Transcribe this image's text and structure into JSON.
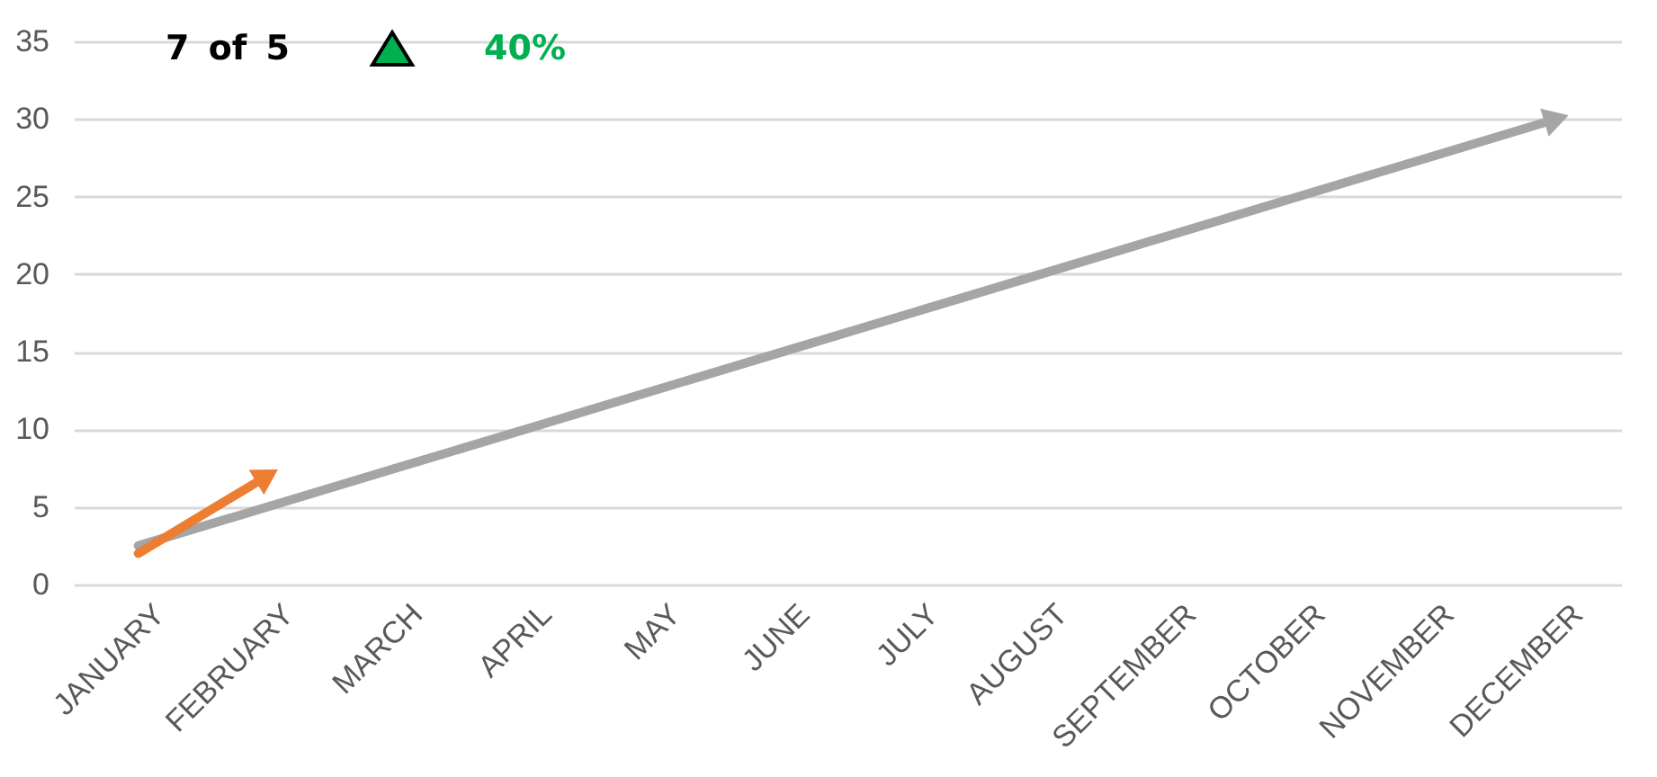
{
  "chart_data": {
    "type": "line",
    "categories": [
      "JANUARY",
      "FEBRUARY",
      "MARCH",
      "APRIL",
      "MAY",
      "JUNE",
      "JULY",
      "AUGUST",
      "SEPTEMBER",
      "OCTOBER",
      "NOVEMBER",
      "DECEMBER"
    ],
    "series": [
      {
        "color": "#a5a5a5",
        "values": [
          2.5,
          5,
          7.5,
          10,
          12.5,
          15,
          17.5,
          20,
          22.5,
          25,
          27.5,
          30
        ]
      },
      {
        "color": "#ed7d31",
        "values": [
          2,
          7,
          null,
          null,
          null,
          null,
          null,
          null,
          null,
          null,
          null,
          null
        ]
      }
    ],
    "annotations": [
      "7 of 5",
      "40%"
    ],
    "ylim": [
      0,
      35
    ],
    "yticks": [
      0,
      5,
      10,
      15,
      20,
      25,
      30,
      35
    ],
    "grid": "y",
    "legend": false
  }
}
